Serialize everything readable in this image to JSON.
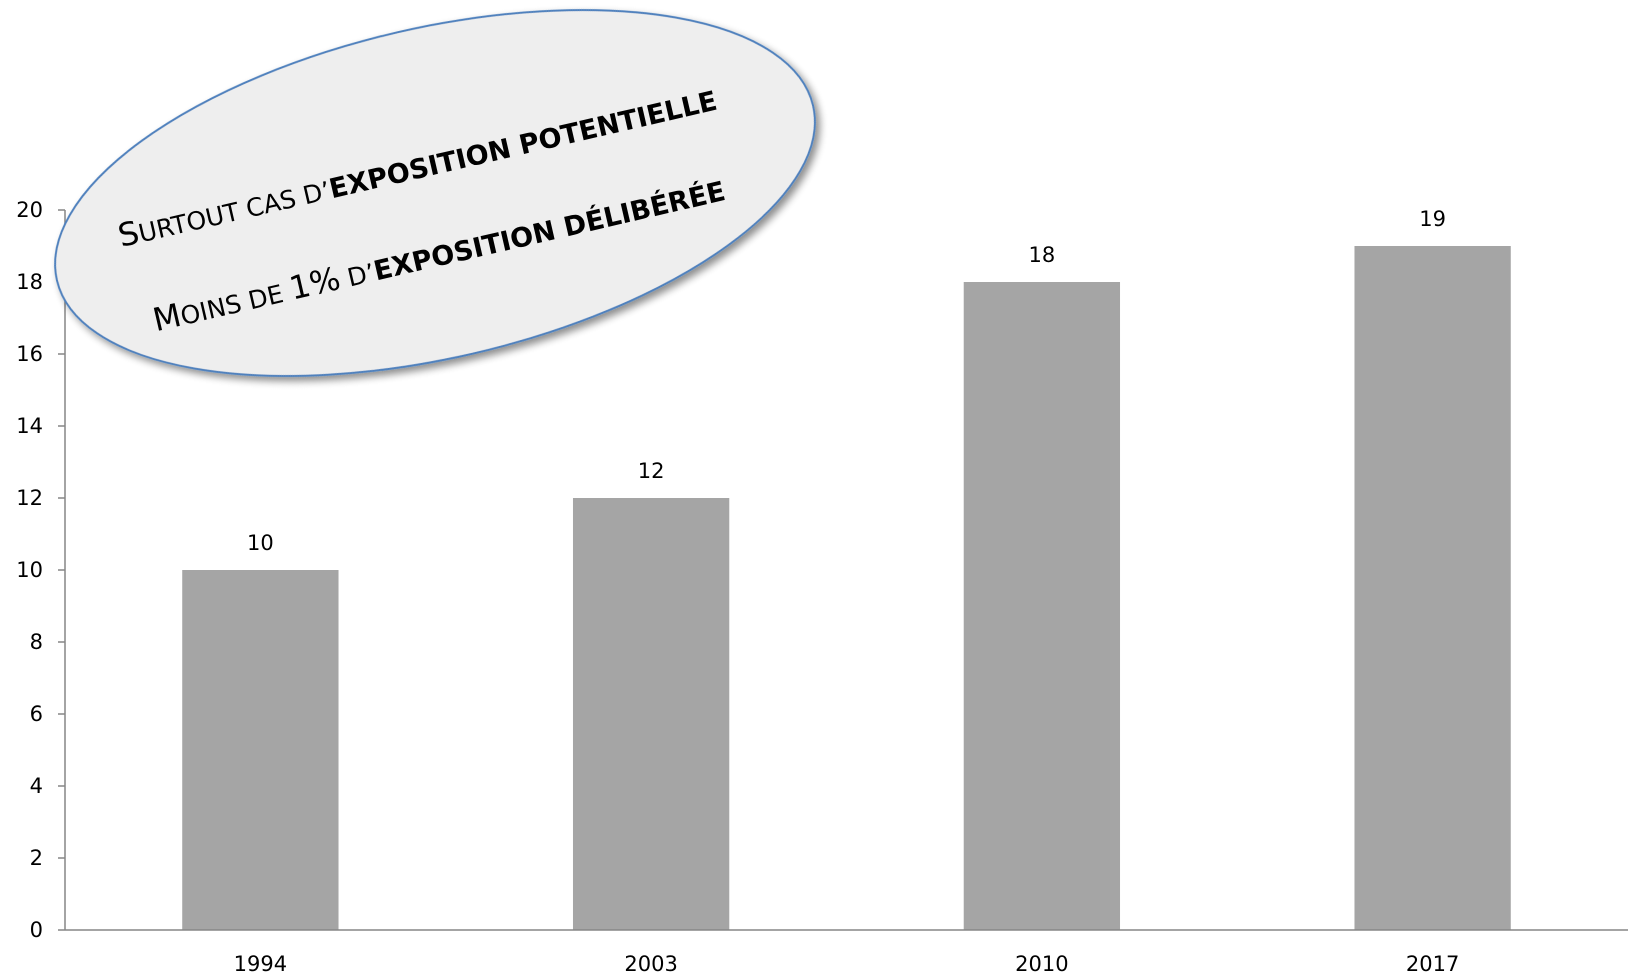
{
  "chart_data": {
    "type": "bar",
    "categories": [
      "1994",
      "2003",
      "2010",
      "2017"
    ],
    "values": [
      10,
      12,
      18,
      19
    ],
    "data_labels": [
      "10",
      "12",
      "18",
      "19"
    ],
    "title": "",
    "xlabel": "",
    "ylabel": "",
    "ylim": [
      0,
      20
    ],
    "yticks": [
      "0",
      "2",
      "4",
      "6",
      "8",
      "10",
      "12",
      "14",
      "16",
      "18",
      "20"
    ],
    "grid": false,
    "legend": "none",
    "bar_color": "#a5a5a5",
    "axis_color": "#868686"
  },
  "callout": {
    "fill": "#eeeeee",
    "stroke": "#4f81bd",
    "line1": {
      "cap1": "S",
      "rest1": "URTOUT CAS D’",
      "bold": "EXPOSITION POTENTIELLE"
    },
    "line2": {
      "cap1": "M",
      "rest1": "OINS DE ",
      "mid": "1%",
      "rest2": " D’",
      "bold": "EXPOSITION DÉLIBÉRÉE"
    }
  }
}
